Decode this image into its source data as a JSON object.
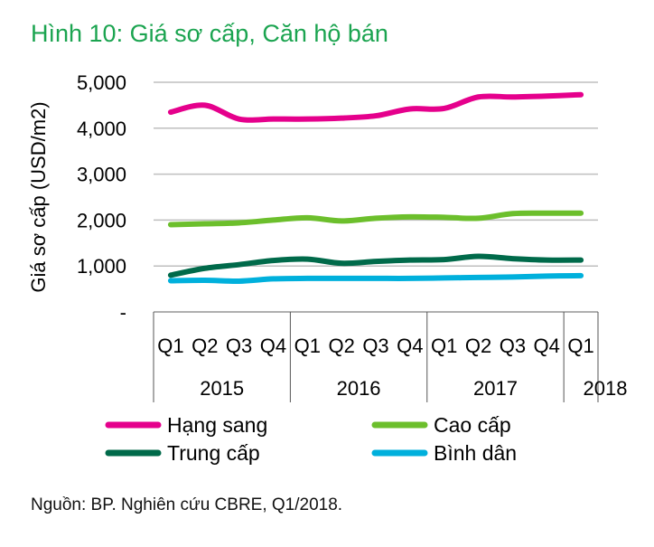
{
  "title": "Hình 10: Giá sơ cấp, Căn hộ bán",
  "source": "Nguồn: BP. Nghiên cứu CBRE, Q1/2018.",
  "chart_data": {
    "type": "line",
    "title": "Hình 10: Giá sơ cấp, Căn hộ bán",
    "ylabel": "Giá sơ cấp (USD/m2)",
    "ylim": [
      0,
      5000
    ],
    "yticks": [
      0,
      1000,
      2000,
      3000,
      4000,
      5000
    ],
    "ytick_labels": [
      "-",
      "1,000",
      "2,000",
      "3,000",
      "4,000",
      "5,000"
    ],
    "grid": true,
    "legend_position": "bottom",
    "categories": [
      "Q1",
      "Q2",
      "Q3",
      "Q4",
      "Q1",
      "Q2",
      "Q3",
      "Q4",
      "Q1",
      "Q2",
      "Q3",
      "Q4",
      "Q1"
    ],
    "year_groups": [
      {
        "label": "2015",
        "count": 4
      },
      {
        "label": "2016",
        "count": 4
      },
      {
        "label": "2017",
        "count": 4
      },
      {
        "label": "2018",
        "count": 1
      }
    ],
    "series": [
      {
        "name": "Hạng sang",
        "color": "#e5008c",
        "values": [
          4350,
          4500,
          4200,
          4200,
          4200,
          4220,
          4270,
          4420,
          4430,
          4680,
          4680,
          4700,
          4730
        ]
      },
      {
        "name": "Cao cấp",
        "color": "#6cbf2c",
        "values": [
          1900,
          1920,
          1940,
          2000,
          2050,
          1980,
          2040,
          2070,
          2060,
          2040,
          2140,
          2150,
          2150
        ]
      },
      {
        "name": "Trung cấp",
        "color": "#006a4a",
        "values": [
          800,
          950,
          1030,
          1120,
          1150,
          1060,
          1100,
          1130,
          1140,
          1210,
          1160,
          1130,
          1130
        ]
      },
      {
        "name": "Bình dân",
        "color": "#00b0dc",
        "values": [
          680,
          690,
          670,
          720,
          730,
          730,
          730,
          730,
          740,
          750,
          760,
          780,
          790
        ]
      }
    ]
  }
}
